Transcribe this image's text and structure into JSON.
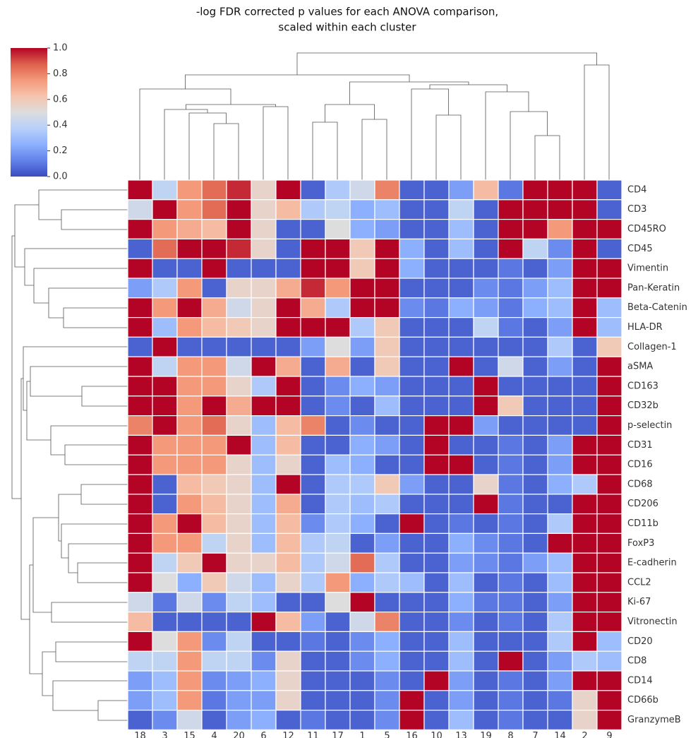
{
  "chart_data": {
    "type": "heatmap",
    "title": [
      "-log FDR corrected p values for each ANOVA comparison,",
      "scaled within each cluster"
    ],
    "colormap": "coolwarm",
    "columns": [
      "18",
      "3",
      "15",
      "4",
      "20",
      "6",
      "12",
      "11",
      "17",
      "1",
      "5",
      "16",
      "10",
      "13",
      "19",
      "8",
      "7",
      "14",
      "2",
      "9"
    ],
    "rows": [
      "CD4",
      "CD3",
      "CD45RO",
      "CD45",
      "Vimentin",
      "Pan-Keratin",
      "Beta-Catenin",
      "HLA-DR",
      "Collagen-1",
      "aSMA",
      "CD163",
      "CD32b",
      "p-selectin",
      "CD31",
      "CD16",
      "CD68",
      "CD206",
      "CD11b",
      "FoxP3",
      "E-cadherin",
      "CCL2",
      "Ki-67",
      "Vitronectin",
      "CD20",
      "CD8",
      "CD14",
      "CD66b",
      "GranzymeB"
    ],
    "values": [
      [
        1,
        0.4,
        0.75,
        0.85,
        0.95,
        0.55,
        1,
        0.05,
        0.35,
        0.45,
        0.8,
        0.05,
        0.05,
        0.2,
        0.65,
        0.1,
        1,
        1,
        1,
        0.05
      ],
      [
        0.45,
        1,
        0.75,
        0.85,
        1,
        0.55,
        0.65,
        0.35,
        0.4,
        0.25,
        0.3,
        0.05,
        0.05,
        0.4,
        0.05,
        1,
        1,
        1,
        1,
        0.05
      ],
      [
        1,
        0.75,
        0.7,
        0.65,
        1,
        0.55,
        0.05,
        0.05,
        0.5,
        0.25,
        0.2,
        0.05,
        0.05,
        0.3,
        0.05,
        1,
        1,
        0.75,
        1,
        1
      ],
      [
        0.05,
        0.85,
        1,
        1,
        0.95,
        0.55,
        0.05,
        1,
        1,
        0.6,
        1,
        0.25,
        0.05,
        0.3,
        0.05,
        1,
        0.4,
        0.15,
        1,
        0.05
      ],
      [
        1,
        0.05,
        0.05,
        1,
        0.05,
        0.05,
        0.05,
        1,
        1,
        0.6,
        1,
        0.25,
        0.05,
        0.05,
        0.05,
        0.1,
        0.05,
        0.2,
        1,
        1
      ],
      [
        0.2,
        0.35,
        0.75,
        0.05,
        0.55,
        0.55,
        0.7,
        0.95,
        0.75,
        1,
        1,
        0.05,
        0.05,
        0.05,
        0.15,
        0.1,
        0.2,
        0.3,
        1,
        1
      ],
      [
        1,
        0.75,
        1,
        0.7,
        0.45,
        0.55,
        1,
        0.7,
        0.35,
        1,
        1,
        0.15,
        0.1,
        0.25,
        0.2,
        0.1,
        0.25,
        0.3,
        1,
        0.3
      ],
      [
        1,
        0.3,
        0.75,
        0.65,
        0.6,
        0.55,
        1,
        1,
        1,
        0.35,
        0.6,
        0.05,
        0.05,
        0.05,
        0.4,
        0.1,
        0.05,
        0.2,
        1,
        0.3
      ],
      [
        0.05,
        1,
        0.05,
        0.05,
        0.05,
        0.05,
        0.05,
        0.2,
        0.5,
        0.2,
        0.6,
        0.05,
        0.05,
        0.05,
        0.05,
        0.05,
        0.05,
        0.35,
        0.05,
        0.6
      ],
      [
        1,
        0.4,
        0.75,
        0.75,
        0.45,
        1,
        0.7,
        0.05,
        0.7,
        0.05,
        0.6,
        0.05,
        0.05,
        1,
        0.05,
        0.45,
        0.05,
        0.2,
        0.05,
        1
      ],
      [
        1,
        1,
        0.75,
        0.75,
        0.55,
        0.35,
        1,
        0.05,
        0.15,
        0.25,
        0.2,
        0.05,
        0.05,
        0.05,
        1,
        0.05,
        0.05,
        0.05,
        0.05,
        1
      ],
      [
        1,
        1,
        0.75,
        1,
        0.7,
        1,
        1,
        0.05,
        0.15,
        0.05,
        0.3,
        0.05,
        0.05,
        0.05,
        1,
        0.6,
        0.05,
        0.05,
        0.05,
        1
      ],
      [
        0.8,
        1,
        0.75,
        0.85,
        0.55,
        0.3,
        0.65,
        0.8,
        0.05,
        0.15,
        0.05,
        0.05,
        1,
        1,
        0.2,
        0.05,
        0.05,
        0.05,
        0.05,
        1
      ],
      [
        1,
        0.75,
        0.75,
        0.75,
        1,
        0.3,
        0.65,
        0.05,
        0.05,
        0.25,
        0.2,
        0.05,
        1,
        0.05,
        0.05,
        0.1,
        0.05,
        0.2,
        1,
        1
      ],
      [
        1,
        0.75,
        0.75,
        0.75,
        0.55,
        0.3,
        0.55,
        0.05,
        0.3,
        0.25,
        0.05,
        0.05,
        1,
        1,
        0.05,
        0.1,
        0.05,
        0.2,
        1,
        1
      ],
      [
        1,
        0.05,
        0.65,
        0.6,
        0.55,
        0.3,
        1,
        0.05,
        0.35,
        0.35,
        0.6,
        0.2,
        0.05,
        0.05,
        0.55,
        0.1,
        0.05,
        0.25,
        0.35,
        1
      ],
      [
        1,
        0.05,
        0.75,
        0.65,
        0.55,
        0.3,
        0.7,
        0.05,
        0.35,
        0.3,
        0.35,
        0.05,
        0.05,
        0.05,
        1,
        0.1,
        0.05,
        0.05,
        1,
        1
      ],
      [
        1,
        0.75,
        1,
        0.65,
        0.55,
        0.3,
        0.65,
        0.15,
        0.35,
        0.25,
        0.05,
        1,
        0.05,
        0.1,
        0.05,
        0.1,
        0.05,
        0.35,
        1,
        1
      ],
      [
        1,
        0.75,
        0.75,
        0.4,
        0.55,
        0.3,
        0.65,
        0.35,
        0.4,
        0.05,
        0.2,
        0.05,
        0.05,
        0.25,
        0.15,
        0.1,
        0.05,
        1,
        1,
        1
      ],
      [
        1,
        0.4,
        0.6,
        1,
        0.55,
        0.55,
        0.65,
        0.35,
        0.45,
        0.85,
        0.35,
        0.05,
        0.05,
        0.2,
        0.15,
        0.1,
        0.2,
        0.3,
        1,
        1
      ],
      [
        1,
        0.5,
        0.25,
        0.6,
        0.45,
        0.3,
        0.55,
        0.35,
        0.75,
        0.25,
        0.35,
        0.3,
        0.05,
        0.3,
        0.05,
        0.1,
        0.05,
        0.3,
        1,
        1
      ],
      [
        0.45,
        0.1,
        0.45,
        0.15,
        0.4,
        0.3,
        0.05,
        0.05,
        0.5,
        1,
        0.05,
        0.05,
        0.05,
        0.25,
        0.1,
        0.1,
        0.05,
        0.2,
        1,
        1
      ],
      [
        0.65,
        0.05,
        0.05,
        0.05,
        0.05,
        1,
        0.65,
        0.2,
        0.05,
        0.45,
        0.8,
        0.05,
        0.05,
        0.15,
        0.05,
        0.1,
        0.05,
        0.35,
        1,
        1
      ],
      [
        1,
        0.5,
        0.75,
        0.15,
        0.4,
        0.05,
        0.05,
        0.1,
        0.05,
        0.15,
        0.25,
        0.05,
        0.05,
        0.3,
        0.05,
        0.05,
        0.05,
        0.35,
        1,
        0.3
      ],
      [
        0.4,
        0.4,
        0.75,
        0.4,
        0.4,
        0.15,
        0.55,
        0.05,
        0.05,
        0.15,
        0.25,
        0.05,
        0.05,
        0.3,
        0.05,
        1,
        0.05,
        0.2,
        0.35,
        0.3
      ],
      [
        0.2,
        0.3,
        0.75,
        0.15,
        0.2,
        0.25,
        0.55,
        0.05,
        0.05,
        0.05,
        0.15,
        0.05,
        1,
        0.2,
        0.05,
        0.1,
        0.05,
        0.2,
        1,
        1
      ],
      [
        0.2,
        0.3,
        0.75,
        0.1,
        0.2,
        0.2,
        0.55,
        0.05,
        0.05,
        0.05,
        0.15,
        1,
        0.05,
        0.2,
        0.05,
        0.1,
        0.05,
        0.1,
        0.55,
        1
      ],
      [
        0.05,
        0.15,
        0.45,
        0.05,
        0.2,
        0.25,
        0.05,
        0.1,
        0.05,
        0.05,
        0.15,
        1,
        0.05,
        0.3,
        0.05,
        0.1,
        0.05,
        0.05,
        0.55,
        1
      ]
    ],
    "colorbar": {
      "lim": [
        0,
        1
      ],
      "ticks": [
        {
          "value": 0,
          "label": "0.0"
        },
        0.2,
        0.4,
        0.6,
        0.8,
        {
          "value": 1,
          "label": "1.0"
        }
      ]
    }
  }
}
